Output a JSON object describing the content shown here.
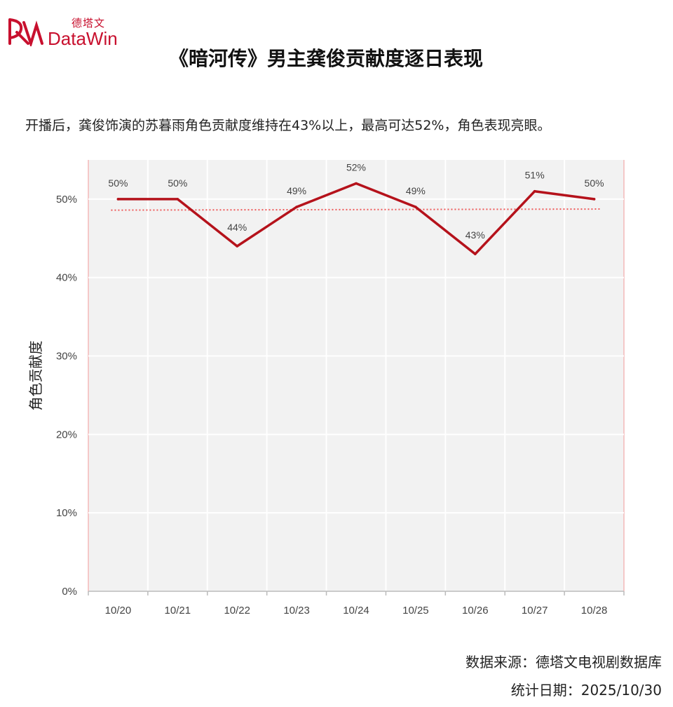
{
  "logo": {
    "cn": "德塔文",
    "en": "DataWin"
  },
  "title": "《暗河传》男主龚俊贡献度逐日表现",
  "subtitle": "开播后，龚俊饰演的苏暮雨角色贡献度维持在43%以上，最高可达52%，角色表现亮眼。",
  "footer": {
    "source": "数据来源：德塔文电视剧数据库",
    "date": "统计日期：2025/10/30"
  },
  "colors": {
    "line": "#b5121b",
    "trend": "#ee5a5a",
    "plot_bg": "#f2f2f2",
    "brand": "#c8102e"
  },
  "chart_data": {
    "type": "line",
    "title": "",
    "xlabel": "",
    "ylabel": "角色贡献度",
    "categories": [
      "10/20",
      "10/21",
      "10/22",
      "10/23",
      "10/24",
      "10/25",
      "10/26",
      "10/27",
      "10/28"
    ],
    "series": [
      {
        "values": [
          50,
          50,
          44,
          49,
          52,
          49,
          43,
          51,
          50
        ]
      }
    ],
    "data_labels": [
      "50%",
      "50%",
      "44%",
      "49%",
      "52%",
      "49%",
      "43%",
      "51%",
      "50%"
    ],
    "ylim": [
      0,
      55
    ],
    "yticks": [
      0,
      10,
      20,
      30,
      40,
      50
    ],
    "ytick_labels": [
      "0%",
      "10%",
      "20%",
      "30%",
      "40%",
      "50%"
    ],
    "trendline": {
      "type": "linear",
      "style": "dotted"
    },
    "grid": true,
    "legend": "none"
  }
}
